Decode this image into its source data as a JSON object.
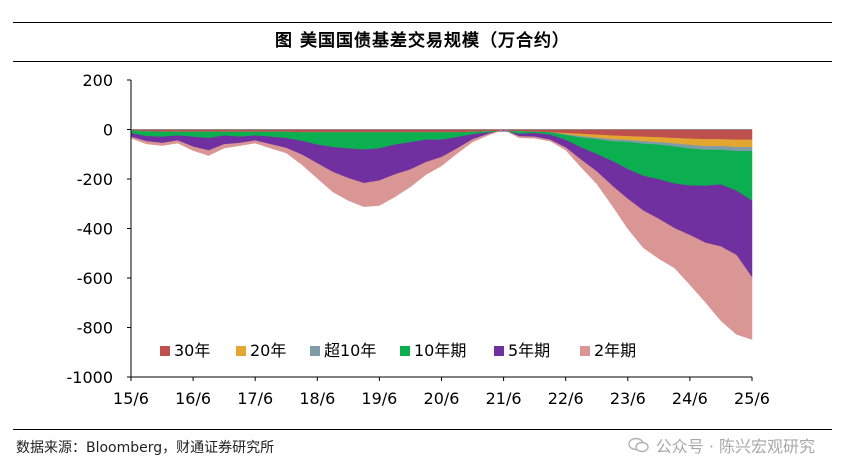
{
  "title": "图  美国国债基差交易规模（万合约）",
  "source": "数据来源：Bloomberg，财通证券研究所",
  "watermark": "公众号 · 陈兴宏观研究",
  "chart_data": {
    "type": "area",
    "stacked": true,
    "xlabel": "",
    "ylabel": "",
    "x_tick_labels": [
      "15/6",
      "16/6",
      "17/6",
      "18/6",
      "19/6",
      "20/6",
      "21/6",
      "22/6",
      "23/6",
      "24/6",
      "25/6"
    ],
    "x_ticks": [
      2015.5,
      2016.5,
      2017.5,
      2018.5,
      2019.5,
      2020.5,
      2021.5,
      2022.5,
      2023.5,
      2024.5,
      2025.5
    ],
    "x_range": [
      2015.5,
      2025.5
    ],
    "ylim": [
      -1000,
      200
    ],
    "y_ticks": [
      200,
      0,
      -200,
      -400,
      -600,
      -800,
      -1000
    ],
    "y_tick_labels": [
      "200",
      "0",
      "-200",
      "-400",
      "-600",
      "-800",
      "-1000"
    ],
    "grid": false,
    "legend_position": "bottom-right",
    "x": [
      2015.5,
      2015.75,
      2016.0,
      2016.25,
      2016.5,
      2016.75,
      2017.0,
      2017.25,
      2017.5,
      2017.75,
      2018.0,
      2018.25,
      2018.5,
      2018.75,
      2019.0,
      2019.25,
      2019.5,
      2019.75,
      2020.0,
      2020.25,
      2020.5,
      2020.75,
      2021.0,
      2021.25,
      2021.5,
      2021.75,
      2022.0,
      2022.25,
      2022.5,
      2022.75,
      2023.0,
      2023.25,
      2023.5,
      2023.75,
      2024.0,
      2024.25,
      2024.5,
      2024.75,
      2025.0,
      2025.25,
      2025.5
    ],
    "series": [
      {
        "name": "30年",
        "color": "#C0504D",
        "values": [
          -5,
          -8,
          -10,
          -10,
          -10,
          -10,
          -10,
          -10,
          -10,
          -10,
          -10,
          -12,
          -12,
          -12,
          -12,
          -12,
          -12,
          -12,
          -12,
          -12,
          -12,
          -12,
          -10,
          -8,
          -6,
          -8,
          -10,
          -12,
          -15,
          -18,
          -22,
          -25,
          -28,
          -30,
          -32,
          -35,
          -38,
          -40,
          -40,
          -42,
          -42
        ]
      },
      {
        "name": "20年",
        "color": "#E3A631",
        "values": [
          0,
          0,
          0,
          0,
          0,
          0,
          0,
          0,
          0,
          0,
          0,
          0,
          0,
          0,
          0,
          0,
          0,
          0,
          0,
          0,
          0,
          0,
          0,
          0,
          0,
          0,
          0,
          0,
          -5,
          -10,
          -12,
          -15,
          -15,
          -18,
          -20,
          -22,
          -25,
          -28,
          -28,
          -30,
          -30
        ]
      },
      {
        "name": "超10年",
        "color": "#7F9BA8",
        "values": [
          0,
          0,
          0,
          0,
          0,
          0,
          0,
          0,
          0,
          0,
          0,
          0,
          0,
          0,
          0,
          0,
          0,
          0,
          0,
          0,
          0,
          0,
          0,
          0,
          0,
          0,
          0,
          0,
          -3,
          -5,
          -6,
          -8,
          -8,
          -10,
          -10,
          -12,
          -14,
          -15,
          -15,
          -16,
          -16
        ]
      },
      {
        "name": "10年期",
        "color": "#0CAF4F",
        "values": [
          -10,
          -20,
          -20,
          -15,
          -20,
          -25,
          -15,
          -20,
          -15,
          -20,
          -25,
          -35,
          -50,
          -60,
          -65,
          -70,
          -65,
          -50,
          -40,
          -30,
          -30,
          -20,
          -10,
          -5,
          0,
          -10,
          -5,
          -10,
          -20,
          -40,
          -60,
          -80,
          -110,
          -130,
          -140,
          -150,
          -150,
          -145,
          -140,
          -160,
          -200
        ]
      },
      {
        "name": "5年期",
        "color": "#7030A0",
        "values": [
          -15,
          -20,
          -25,
          -20,
          -40,
          -50,
          -35,
          -25,
          -20,
          -30,
          -40,
          -55,
          -75,
          -100,
          -120,
          -135,
          -130,
          -120,
          -110,
          -90,
          -70,
          -45,
          -20,
          -5,
          5,
          -10,
          -15,
          -20,
          -30,
          -50,
          -70,
          -100,
          -120,
          -140,
          -160,
          -180,
          -200,
          -230,
          -250,
          -260,
          -310
        ]
      },
      {
        "name": "2年期",
        "color": "#D99694",
        "values": [
          -5,
          -10,
          -10,
          -10,
          -15,
          -20,
          -15,
          -10,
          -10,
          -15,
          -20,
          -40,
          -60,
          -80,
          -90,
          -95,
          -100,
          -90,
          -70,
          -50,
          -35,
          -20,
          -10,
          -5,
          0,
          -5,
          -5,
          -5,
          -10,
          -30,
          -50,
          -80,
          -120,
          -150,
          -160,
          -160,
          -200,
          -240,
          -300,
          -320,
          -250
        ]
      }
    ]
  }
}
